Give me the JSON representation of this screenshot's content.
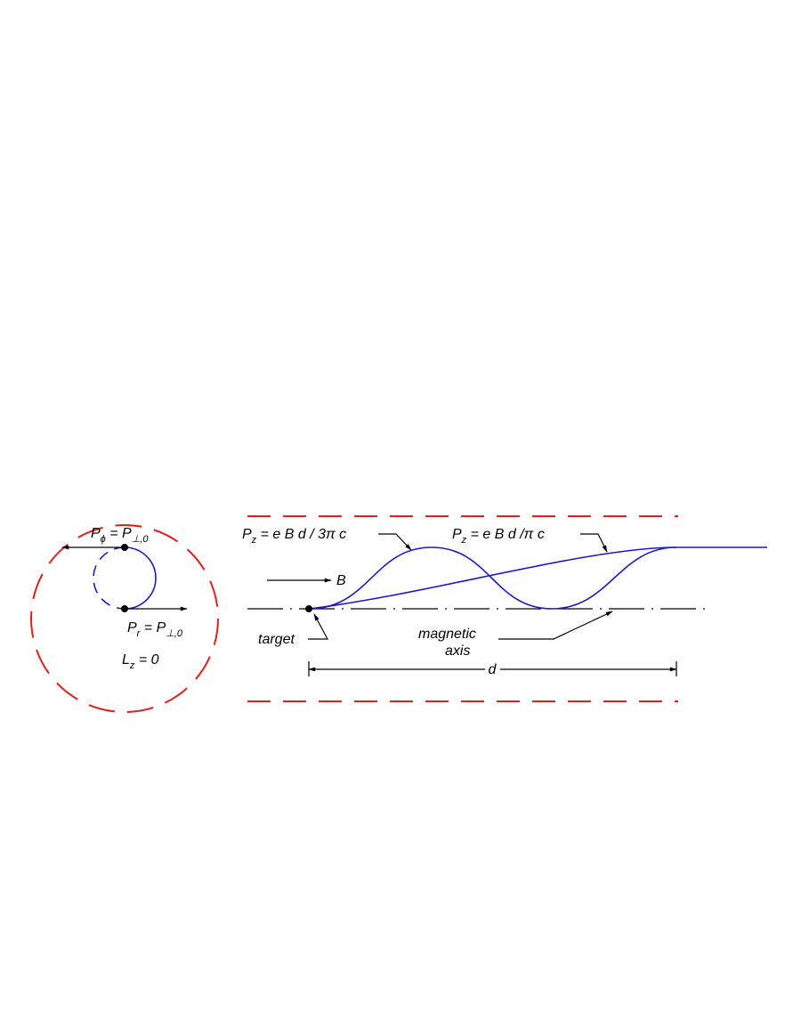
{
  "labels": {
    "p_phi": [
      "P",
      "ϕ",
      " = P",
      "⊥,0"
    ],
    "p_r": [
      "P",
      "r",
      " = P",
      "⊥,0"
    ],
    "l_z": [
      "L",
      "z",
      " = 0"
    ],
    "pz_3pi": [
      "P",
      "z",
      " = e B d / 3π c"
    ],
    "pz_pi": [
      "P",
      "z",
      " = e B d /π c"
    ],
    "b_field": [
      "B"
    ],
    "target": [
      "target"
    ],
    "magnetic_axis": [
      "magnetic"
    ],
    "magnetic_axis_2": [
      "axis"
    ],
    "distance": [
      "d"
    ]
  }
}
